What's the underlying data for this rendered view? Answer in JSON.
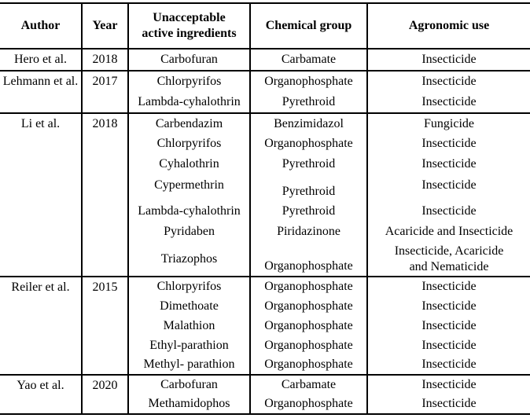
{
  "colors": {
    "text": "#000000",
    "border": "#000000",
    "background": "#ffffff"
  },
  "table": {
    "headers": [
      "Author",
      "Year",
      "Unacceptable\nactive ingredients",
      "Chemical group",
      "Agronomic use"
    ],
    "groups": [
      {
        "author": "Hero et al.",
        "year": "2018",
        "rows": [
          {
            "ingredient": "Carbofuran",
            "chemical": "Carbamate",
            "use": "Insecticide"
          }
        ]
      },
      {
        "author": "Lehmann et al.",
        "year": "2017",
        "rows": [
          {
            "ingredient": "Chlorpyrifos",
            "chemical": "Organophosphate",
            "use": "Insecticide"
          },
          {
            "ingredient": "Lambda-cyhalothrin",
            "chemical": "Pyrethroid",
            "use": "Insecticide"
          }
        ]
      },
      {
        "author": "Li et al.",
        "year": "2018",
        "rows": [
          {
            "ingredient": "Carbendazim",
            "chemical": "Benzimidazol",
            "use": "Fungicide"
          },
          {
            "ingredient": "Chlorpyrifos",
            "chemical": "Organophosphate",
            "use": "Insecticide"
          },
          {
            "ingredient": "Cyhalothrin",
            "chemical": "Pyrethroid",
            "use": "Insecticide"
          },
          {
            "ingredient": "Cypermethrin",
            "chemical": "Pyrethroid",
            "use": "Insecticide"
          },
          {
            "ingredient": "Lambda-cyhalothrin",
            "chemical": "Pyrethroid",
            "use": "Insecticide"
          },
          {
            "ingredient": "Pyridaben",
            "chemical": "Piridazinone",
            "use": "Acaricide and Insecticide"
          },
          {
            "ingredient": "Triazophos",
            "chemical": "Organophosphate",
            "use": "Insecticide, Acaricide\nand Nematicide"
          }
        ]
      },
      {
        "author": "Reiler et al.",
        "year": "2015",
        "rows": [
          {
            "ingredient": "Chlorpyrifos",
            "chemical": "Organophosphate",
            "use": "Insecticide"
          },
          {
            "ingredient": "Dimethoate",
            "chemical": "Organophosphate",
            "use": "Insecticide"
          },
          {
            "ingredient": "Malathion",
            "chemical": "Organophosphate",
            "use": "Insecticide"
          },
          {
            "ingredient": "Ethyl-parathion",
            "chemical": "Organophosphate",
            "use": "Insecticide"
          },
          {
            "ingredient": "Methyl- parathion",
            "chemical": "Organophosphate",
            "use": "Insecticide"
          }
        ]
      },
      {
        "author": "Yao et al.",
        "year": "2020",
        "rows": [
          {
            "ingredient": "Carbofuran",
            "chemical": "Carbamate",
            "use": "Insecticide"
          },
          {
            "ingredient": "Methamidophos",
            "chemical": "Organophosphate",
            "use": "Insecticide"
          }
        ]
      }
    ]
  }
}
